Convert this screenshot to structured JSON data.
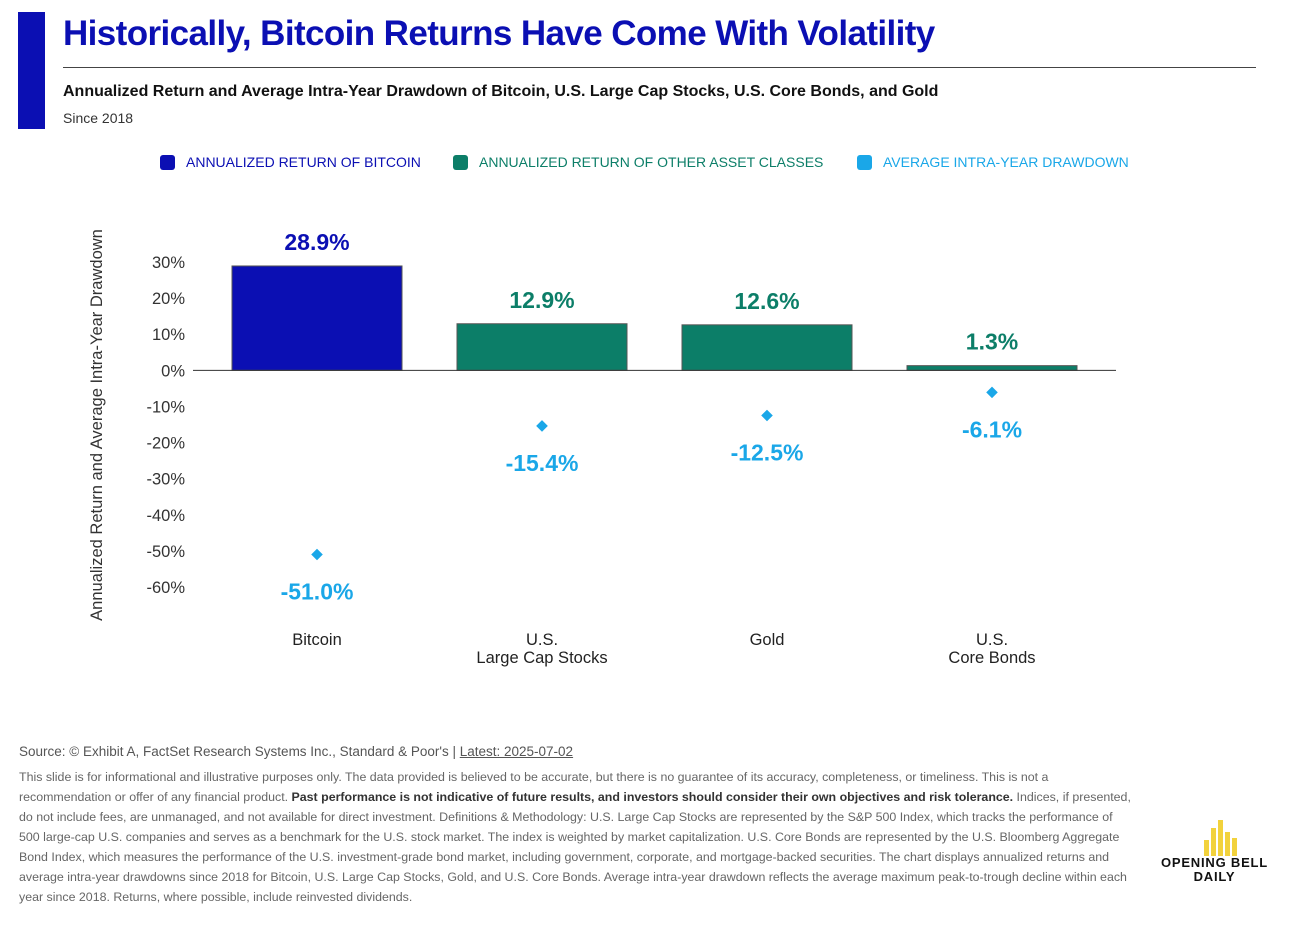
{
  "header": {
    "title": "Historically, Bitcoin Returns Have Come With Volatility",
    "subtitle": "Annualized Return and Average Intra-Year Drawdown of Bitcoin, U.S. Large Cap Stocks, U.S. Core Bonds, and Gold",
    "since": "Since 2018"
  },
  "colors": {
    "bitcoin": "#0b0fb3",
    "other": "#0c7e68",
    "drawdown": "#1aa7e8",
    "logo_accent": "#f2d23c"
  },
  "chart_data": {
    "type": "bar",
    "title": "",
    "ylabel": "Annualized Return and Average Intra-Year Drawdown",
    "xlabel": "",
    "ylim": [
      -60,
      30
    ],
    "yticks": [
      30,
      20,
      10,
      0,
      -10,
      -20,
      -30,
      -40,
      -50,
      -60
    ],
    "ytick_labels": [
      "30%",
      "20%",
      "10%",
      "0%",
      "-10%",
      "-20%",
      "-30%",
      "-40%",
      "-50%",
      "-60%"
    ],
    "categories": [
      "Bitcoin",
      "U.S.\nLarge Cap Stocks",
      "Gold",
      "U.S.\nCore Bonds"
    ],
    "legend": [
      {
        "label": "ANNUALIZED RETURN OF BITCOIN",
        "color": "#0b0fb3"
      },
      {
        "label": "ANNUALIZED RETURN OF OTHER ASSET CLASSES",
        "color": "#0c7e68"
      },
      {
        "label": "AVERAGE INTRA-YEAR DRAWDOWN",
        "color": "#1aa7e8"
      }
    ],
    "legend_position": "top",
    "grid": false,
    "series": [
      {
        "name": "Annualized Return",
        "type": "bar",
        "values": [
          28.9,
          12.9,
          12.6,
          1.3
        ],
        "labels": [
          "28.9%",
          "12.9%",
          "12.6%",
          "1.3%"
        ]
      },
      {
        "name": "Average Intra-Year Drawdown",
        "type": "scatter",
        "values": [
          -51.0,
          -15.4,
          -12.5,
          -6.1
        ],
        "labels": [
          "-51.0%",
          "-15.4%",
          "-12.5%",
          "-6.1%"
        ]
      }
    ]
  },
  "footer": {
    "source": "Source: © Exhibit A, FactSet Research Systems Inc., Standard & Poor's | ",
    "latest": "Latest: 2025-07-02",
    "disclaimer_1": "This slide is for informational and illustrative purposes only. The data provided is believed to be accurate, but there is no guarantee of its accuracy, completeness, or timeliness. This is not a recommendation or offer of any financial product. ",
    "disclaimer_bold": "Past performance is not indicative of future results, and investors should consider their own objectives and risk tolerance.",
    "disclaimer_2": " Indices, if presented, do not include fees, are unmanaged, and not available for direct investment. Definitions & Methodology: U.S. Large Cap Stocks are represented by the S&P 500 Index, which tracks the performance of 500 large-cap U.S. companies and serves as a benchmark for the U.S. stock market. The index is weighted by market capitalization. U.S. Core Bonds are represented by the U.S. Bloomberg Aggregate Bond Index, which measures the performance of the U.S. investment-grade bond market, including government, corporate, and mortgage-backed securities. The chart displays annualized returns and average intra-year drawdowns since 2018 for Bitcoin, U.S. Large Cap Stocks, Gold, and U.S. Core Bonds. Average intra-year drawdown reflects the average maximum peak-to-trough decline within each year since 2018. Returns, where possible, include reinvested dividends."
  },
  "logo": {
    "line1": "OPENING BELL",
    "line2": "DAILY"
  }
}
